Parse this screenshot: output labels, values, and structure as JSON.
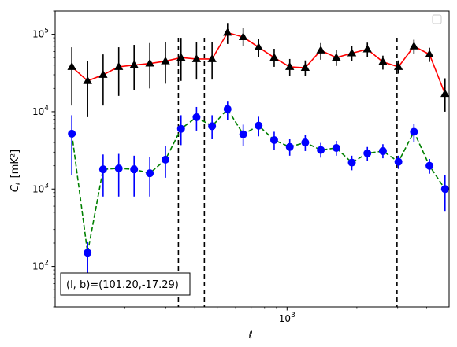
{
  "chart_data": {
    "type": "scatter",
    "xlabel": "ℓ",
    "ylabel": "C",
    "ylabel_sub": "ℓ",
    "ylabel_unit": "[mK²]",
    "xscale": "log",
    "yscale": "log",
    "xlim": [
      100,
      5000
    ],
    "ylim": [
      30,
      200000
    ],
    "x_tick_labels": [
      {
        "base": "10",
        "exp": "3",
        "value": 1000
      }
    ],
    "y_tick_labels": [
      {
        "base": "10",
        "exp": "2",
        "value": 100
      },
      {
        "base": "10",
        "exp": "3",
        "value": 1000
      },
      {
        "base": "10",
        "exp": "4",
        "value": 10000
      },
      {
        "base": "10",
        "exp": "5",
        "value": 100000
      }
    ],
    "legend": {
      "position": "upper right",
      "entries": []
    },
    "vlines": [
      {
        "x": 340,
        "style": "dashed",
        "color": "#000000"
      },
      {
        "x": 440,
        "style": "dashed",
        "color": "#000000"
      },
      {
        "x": 2980,
        "style": "dashed",
        "color": "#000000"
      }
    ],
    "annotation": "(l, b)=(101.20,-17.29)",
    "series": [
      {
        "line_color": "#ff0000",
        "line_style": "solid",
        "marker": "triangle",
        "marker_color": "#000000",
        "errorbar_color": "#000000",
        "x": [
          118,
          138,
          161,
          188,
          219,
          256,
          299,
          349,
          407,
          475,
          554,
          647,
          754,
          880,
          1027,
          1198,
          1398,
          1631,
          1903,
          2220,
          2590,
          3022,
          3526,
          4114,
          4800
        ],
        "y": [
          38000,
          25000,
          30000,
          38000,
          40000,
          42000,
          45000,
          50000,
          48000,
          48000,
          105000,
          92000,
          68000,
          50000,
          38000,
          37000,
          62000,
          50000,
          57000,
          64000,
          44000,
          38000,
          70000,
          55000,
          17000
        ],
        "yerr_lower": [
          26000,
          16500,
          18000,
          22000,
          21000,
          22000,
          22000,
          25000,
          22000,
          22000,
          30000,
          22000,
          17000,
          12000,
          9000,
          8000,
          15000,
          11000,
          12000,
          13000,
          9000,
          7000,
          14000,
          11000,
          7000
        ],
        "yerr_upper": [
          30000,
          20000,
          25000,
          30000,
          33000,
          35000,
          35000,
          40000,
          32000,
          32000,
          35000,
          30000,
          20000,
          15000,
          10000,
          9000,
          15000,
          12000,
          13000,
          14000,
          9000,
          8000,
          15000,
          12000,
          10000
        ]
      },
      {
        "line_color": "#008000",
        "line_style": "dashed",
        "marker": "circle",
        "marker_color": "#0000ff",
        "errorbar_color": "#0000ff",
        "x": [
          118,
          138,
          161,
          188,
          219,
          256,
          299,
          349,
          407,
          475,
          554,
          647,
          754,
          880,
          1027,
          1198,
          1398,
          1631,
          1903,
          2220,
          2590,
          3022,
          3526,
          4114,
          4800
        ],
        "y": [
          5200,
          150,
          1800,
          1850,
          1800,
          1600,
          2400,
          6000,
          8500,
          6500,
          10800,
          5100,
          6600,
          4300,
          3500,
          4000,
          3200,
          3400,
          2200,
          2900,
          3100,
          2250,
          5500,
          2000,
          1000
        ],
        "yerr_lower": [
          3700,
          82,
          1000,
          1050,
          1000,
          800,
          1000,
          2300,
          2800,
          2100,
          3000,
          1500,
          1800,
          1100,
          800,
          900,
          650,
          700,
          450,
          600,
          600,
          430,
          1400,
          420,
          480
        ],
        "yerr_upper": [
          3800,
          60,
          1000,
          1000,
          900,
          1000,
          1200,
          3000,
          3000,
          2500,
          3000,
          1700,
          2000,
          1200,
          900,
          1000,
          750,
          800,
          500,
          600,
          700,
          450,
          1500,
          450,
          500
        ]
      }
    ]
  }
}
